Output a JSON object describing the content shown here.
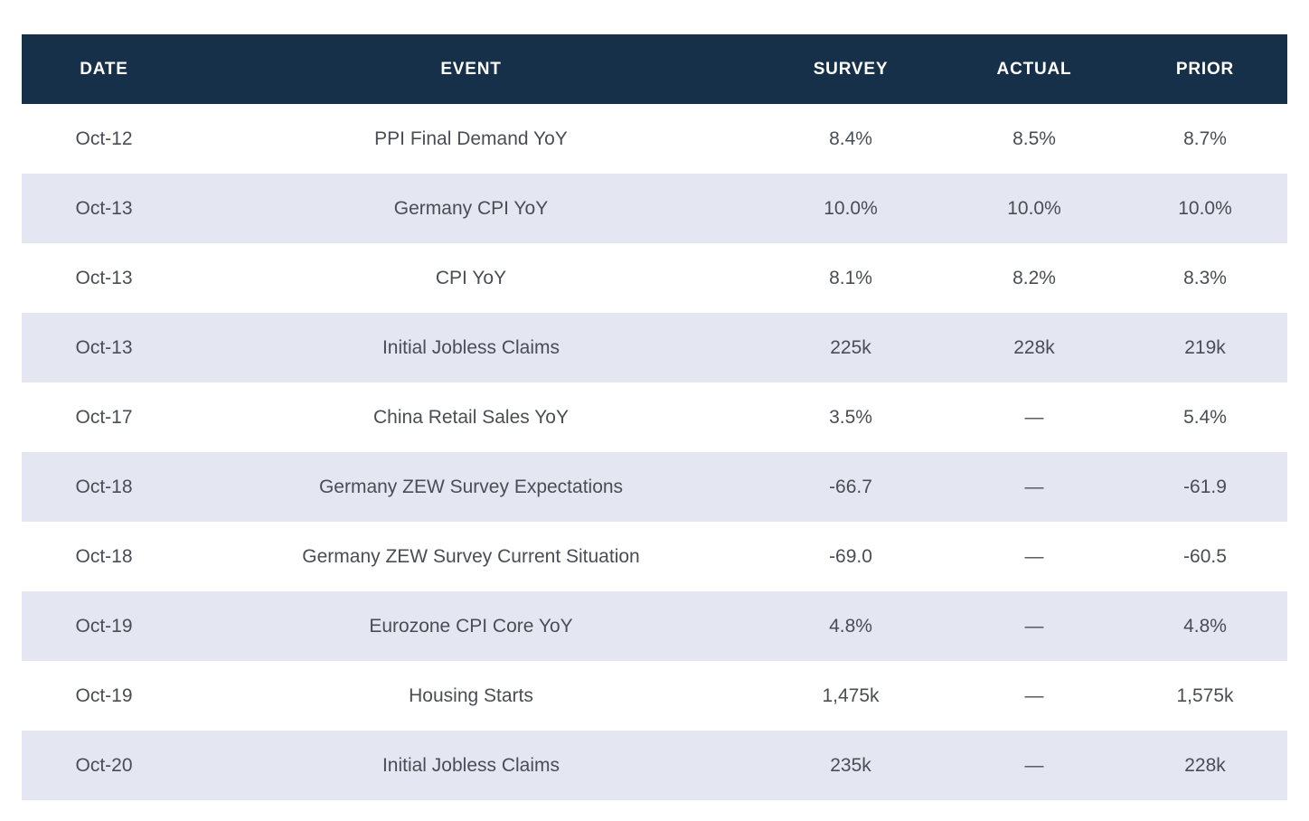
{
  "chart_data": {
    "type": "table",
    "title": "",
    "columns": [
      "DATE",
      "EVENT",
      "SURVEY",
      "ACTUAL",
      "PRIOR"
    ],
    "rows": [
      {
        "date": "Oct-12",
        "event": "PPI Final Demand YoY",
        "survey": "8.4%",
        "actual": "8.5%",
        "prior": "8.7%"
      },
      {
        "date": "Oct-13",
        "event": "Germany CPI YoY",
        "survey": "10.0%",
        "actual": "10.0%",
        "prior": "10.0%"
      },
      {
        "date": "Oct-13",
        "event": "CPI YoY",
        "survey": "8.1%",
        "actual": "8.2%",
        "prior": "8.3%"
      },
      {
        "date": "Oct-13",
        "event": "Initial Jobless Claims",
        "survey": "225k",
        "actual": "228k",
        "prior": "219k"
      },
      {
        "date": "Oct-17",
        "event": "China Retail Sales YoY",
        "survey": "3.5%",
        "actual": "—",
        "prior": "5.4%"
      },
      {
        "date": "Oct-18",
        "event": "Germany ZEW Survey Expectations",
        "survey": "-66.7",
        "actual": "—",
        "prior": "-61.9"
      },
      {
        "date": "Oct-18",
        "event": "Germany ZEW Survey Current Situation",
        "survey": "-69.0",
        "actual": "—",
        "prior": "-60.5"
      },
      {
        "date": "Oct-19",
        "event": "Eurozone CPI Core YoY",
        "survey": "4.8%",
        "actual": "—",
        "prior": "4.8%"
      },
      {
        "date": "Oct-19",
        "event": "Housing Starts",
        "survey": "1,475k",
        "actual": "—",
        "prior": "1,575k"
      },
      {
        "date": "Oct-20",
        "event": "Initial Jobless Claims",
        "survey": "235k",
        "actual": "—",
        "prior": "228k"
      }
    ],
    "layout_hints": {
      "header_position": "top",
      "row_striping": "alternate, odd rows white, even rows lavender",
      "alignment": "all cells centered",
      "grid": "off"
    }
  },
  "colors": {
    "header_bg": "#16304a",
    "header_text": "#ffffff",
    "row_bg": "#ffffff",
    "row_alt_bg": "#e4e6f1",
    "body_text": "#4a4d53",
    "page_bg": "#ffffff"
  },
  "header": {
    "col_date": "DATE",
    "col_event": "EVENT",
    "col_survey": "SURVEY",
    "col_actual": "ACTUAL",
    "col_prior": "PRIOR"
  }
}
